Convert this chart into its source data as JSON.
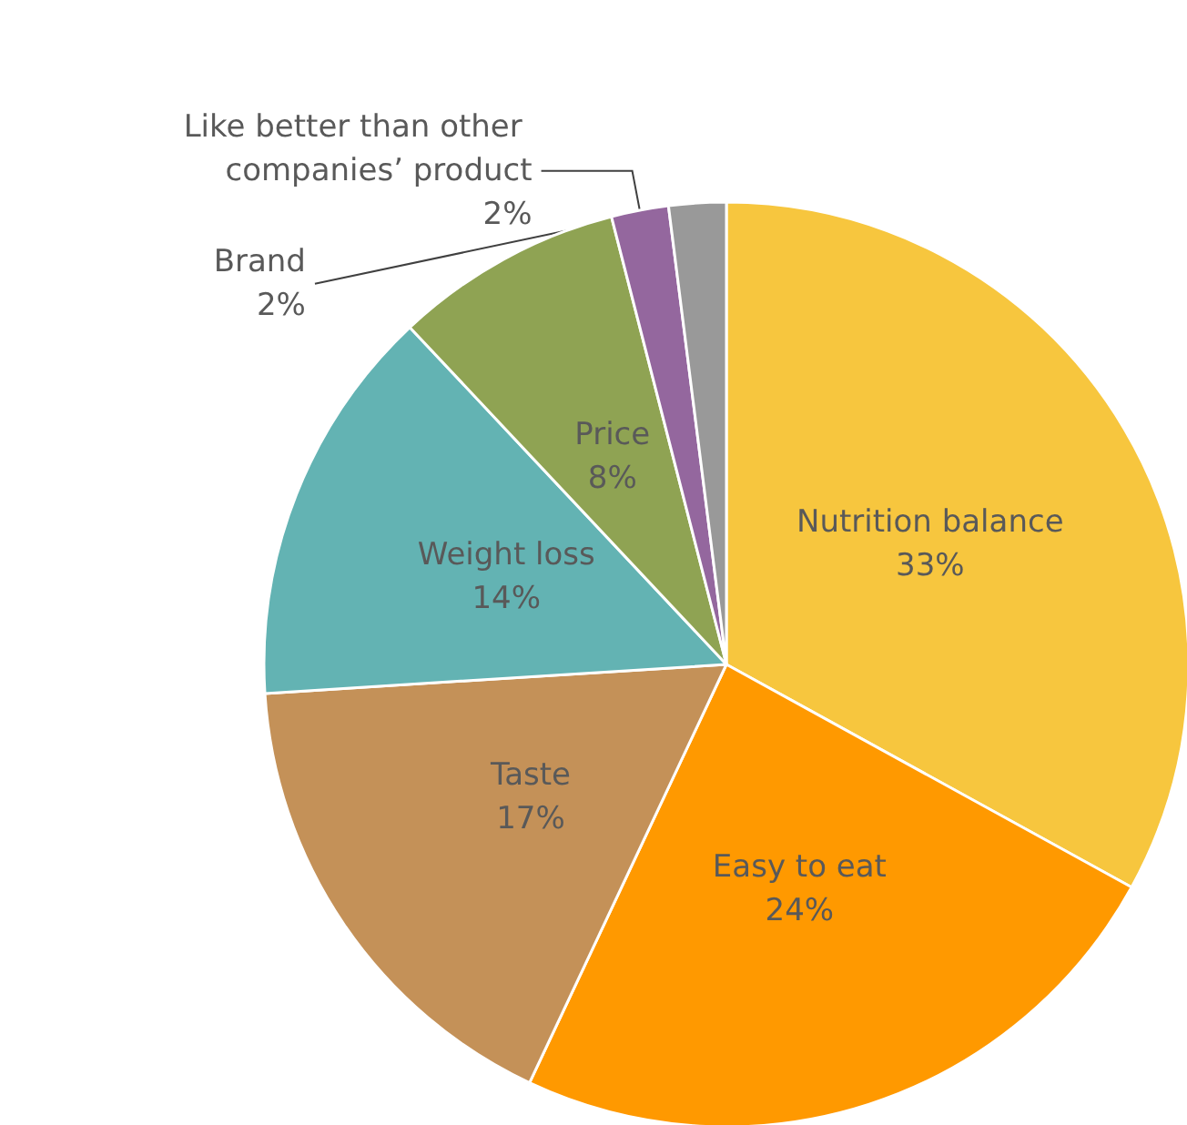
{
  "chart_data": {
    "type": "pie",
    "categories": [
      "Nutrition balance",
      "Easy to eat",
      "Taste",
      "Weight loss",
      "Price",
      "Like better than other companies’ product",
      "Brand"
    ],
    "values": [
      33,
      24,
      17,
      14,
      8,
      2,
      2
    ],
    "value_labels": [
      "33%",
      "24%",
      "17%",
      "14%",
      "8%",
      "2%",
      "2%"
    ],
    "colors": [
      "#f7c63e",
      "#ff9900",
      "#c49158",
      "#63b3b3",
      "#8fa353",
      "#94679e",
      "#999999"
    ],
    "legend": false
  }
}
